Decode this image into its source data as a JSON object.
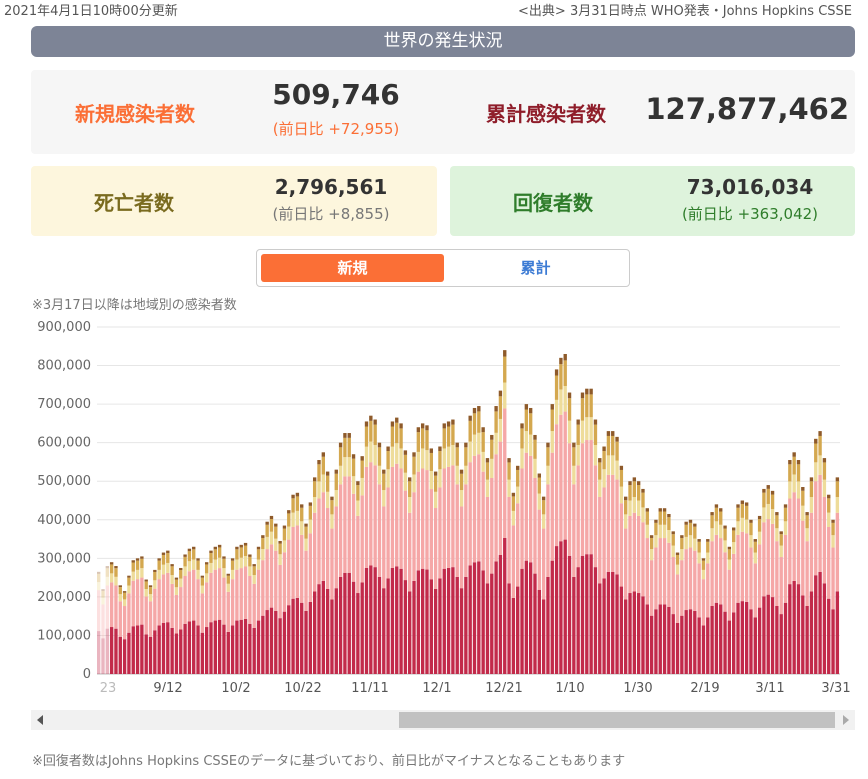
{
  "header": {
    "updated": "2021年4月1日10時00分更新",
    "source": "<出典> 3月31日時点 WHO発表・Johns Hopkins CSSE",
    "banner": "世界の発生状況"
  },
  "stats": {
    "new_cases": {
      "label": "新規感染者数",
      "value": "509,746",
      "diff": "(前日比 +72,955)"
    },
    "total_cases": {
      "label": "累計感染者数",
      "value": "127,877,462"
    },
    "deaths": {
      "label": "死亡者数",
      "value": "2,796,561",
      "diff": "(前日比 +8,855)"
    },
    "recovered": {
      "label": "回復者数",
      "value": "73,016,034",
      "diff": "(前日比 +363,042)"
    }
  },
  "toggle": {
    "new_label": "新規",
    "total_label": "累計"
  },
  "chart_note": "※3月17日以降は地域別の感染者数",
  "footnote": "※回復者数はJohns Hopkins CSSEのデータに基づいており、前日比がマイナスとなることもあります",
  "colors": {
    "orange": "#fb6f36",
    "dark_red": "#8f1d2a",
    "deaths_label": "#7a6b1f",
    "recovered_label": "#2f7d2b",
    "toggle_off": "#3c7bd4"
  },
  "chart_data": {
    "type": "bar",
    "stacked": true,
    "ylim": [
      0,
      900000
    ],
    "yticks": [
      "0",
      "100,000",
      "200,000",
      "300,000",
      "400,000",
      "500,000",
      "600,000",
      "700,000",
      "800,000",
      "900,000"
    ],
    "xticks": [
      "23",
      "9/12",
      "10/2",
      "10/22",
      "11/11",
      "12/1",
      "12/21",
      "1/10",
      "1/30",
      "2/19",
      "3/11",
      "3/31"
    ],
    "grid": true,
    "series_colors": [
      "#c22a4a",
      "#f5a7a7",
      "#eedc9a",
      "#d4a84f",
      "#8e5a2a"
    ],
    "totals": [
      265000,
      220000,
      280000,
      290000,
      280000,
      230000,
      215000,
      255000,
      295000,
      300000,
      305000,
      245000,
      230000,
      270000,
      300000,
      315000,
      320000,
      285000,
      250000,
      275000,
      310000,
      325000,
      330000,
      300000,
      255000,
      290000,
      320000,
      330000,
      335000,
      305000,
      260000,
      300000,
      330000,
      335000,
      340000,
      310000,
      285000,
      330000,
      360000,
      395000,
      410000,
      390000,
      345000,
      385000,
      425000,
      465000,
      470000,
      440000,
      390000,
      445000,
      510000,
      555000,
      575000,
      525000,
      460000,
      530000,
      600000,
      625000,
      625000,
      570000,
      500000,
      565000,
      655000,
      670000,
      660000,
      600000,
      530000,
      590000,
      655000,
      665000,
      650000,
      580000,
      510000,
      575000,
      640000,
      650000,
      645000,
      585000,
      525000,
      590000,
      650000,
      655000,
      660000,
      600000,
      530000,
      600000,
      670000,
      690000,
      695000,
      640000,
      560000,
      620000,
      695000,
      735000,
      840000,
      560000,
      470000,
      540000,
      650000,
      700000,
      690000,
      620000,
      520000,
      460000,
      600000,
      700000,
      790000,
      820000,
      830000,
      730000,
      600000,
      660000,
      730000,
      740000,
      740000,
      660000,
      560000,
      590000,
      630000,
      630000,
      615000,
      540000,
      460000,
      500000,
      510000,
      500000,
      480000,
      430000,
      360000,
      400000,
      430000,
      430000,
      415000,
      370000,
      315000,
      360000,
      395000,
      400000,
      390000,
      350000,
      300000,
      350000,
      420000,
      440000,
      430000,
      385000,
      330000,
      380000,
      440000,
      450000,
      445000,
      400000,
      350000,
      410000,
      480000,
      490000,
      475000,
      420000,
      370000,
      440000,
      555000,
      575000,
      555000,
      485000,
      420000,
      510000,
      610000,
      630000,
      560000,
      465000,
      400000,
      510000
    ]
  }
}
